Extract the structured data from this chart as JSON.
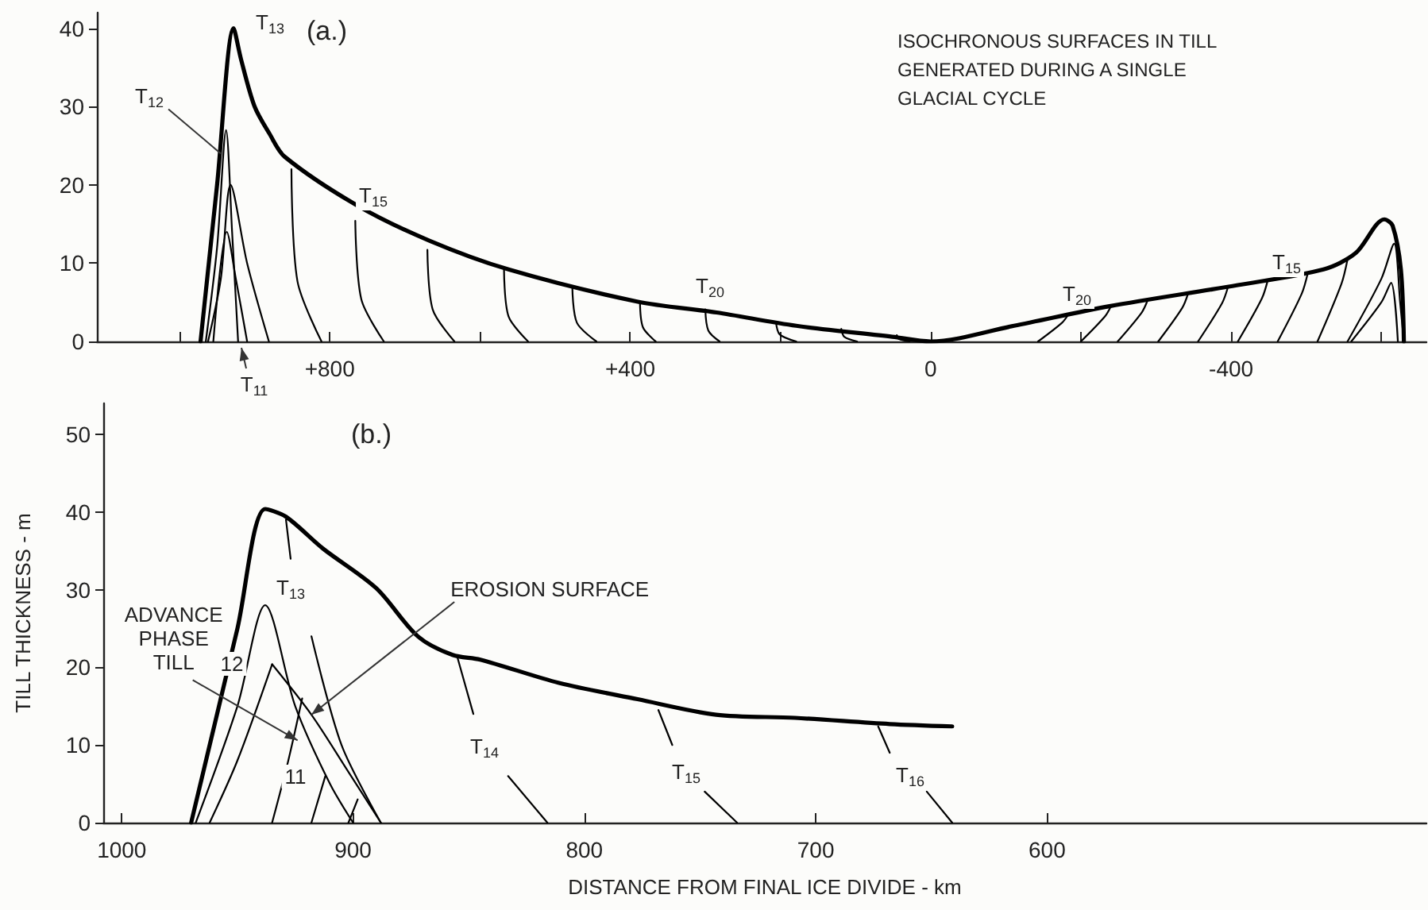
{
  "chart_data": [
    {
      "type": "line",
      "title": "(a.)",
      "subtitle": "ISOCHRONOUS SURFACES IN TILL GENERATED DURING A SINGLE GLACIAL CYCLE",
      "marker": "none",
      "xlim": [
        1110,
        -660
      ],
      "ylim": [
        0,
        42
      ],
      "xticks": [
        {
          "value": 1000,
          "label": null
        },
        {
          "value": 800,
          "label": "+800"
        },
        {
          "value": 600,
          "label": null
        },
        {
          "value": 400,
          "label": "+400"
        },
        {
          "value": 200,
          "label": null
        },
        0,
        {
          "value": -200,
          "label": null
        },
        {
          "value": -400,
          "label": "-400"
        },
        {
          "value": -600,
          "label": null
        }
      ],
      "yticks": [
        0,
        10,
        20,
        30,
        40
      ],
      "series": [
        {
          "color": "#000000",
          "x": [
            972,
            950,
            928,
            918,
            900,
            880,
            860,
            764,
            668,
            562,
            391,
            285,
            179,
            51,
            0,
            -111,
            -238,
            -409,
            -523,
            -566,
            -604,
            -615,
            -626,
            -630
          ],
          "values": [
            0,
            20,
            40,
            36,
            30,
            26.5,
            23.6,
            17.4,
            12.9,
            9.2,
            5.1,
            3.7,
            2,
            0.6,
            0,
            2,
            4.5,
            7.2,
            9.2,
            11.3,
            15.6,
            14.8,
            9.2,
            0
          ]
        },
        {
          "color": "#000000",
          "x": [
            965,
            950,
            938,
            930,
            922
          ],
          "values": [
            0,
            12,
            27,
            14,
            0
          ]
        },
        {
          "color": "#000000",
          "x": [
            962,
            945,
            932,
            910,
            881
          ],
          "values": [
            0,
            8,
            20,
            10,
            0
          ]
        },
        {
          "color": "#000000",
          "x": [
            955,
            937,
            925,
            910
          ],
          "values": [
            0,
            14,
            8,
            0
          ]
        },
        {
          "color": "#000000",
          "x": [
            851,
            843,
            811
          ],
          "values": [
            22,
            7.7,
            0
          ]
        },
        {
          "color": "#000000",
          "x": [
            766,
            758,
            728
          ],
          "values": [
            15.4,
            5.4,
            0
          ]
        },
        {
          "color": "#000000",
          "x": [
            670,
            663,
            634
          ],
          "values": [
            11.7,
            4.1,
            0
          ]
        },
        {
          "color": "#000000",
          "x": [
            568,
            562,
            536
          ],
          "values": [
            9.2,
            3.2,
            0
          ]
        },
        {
          "color": "#000000",
          "x": [
            477,
            471,
            445
          ],
          "values": [
            6.8,
            2.4,
            0
          ]
        },
        {
          "color": "#000000",
          "x": [
            387,
            383,
            366
          ],
          "values": [
            5.1,
            1.8,
            0
          ]
        },
        {
          "color": "#000000",
          "x": [
            300,
            296,
            281
          ],
          "values": [
            4.1,
            1.4,
            0
          ]
        },
        {
          "color": "#000000",
          "x": [
            206,
            201,
            179
          ],
          "values": [
            2.5,
            0.9,
            0
          ]
        },
        {
          "color": "#000000",
          "x": [
            119,
            115,
            98
          ],
          "values": [
            1.6,
            0.6,
            0
          ]
        },
        {
          "color": "#000000",
          "x": [
            45,
            42,
            28
          ],
          "values": [
            0.8,
            0.3,
            0
          ]
        },
        {
          "color": "#000000",
          "x": [
            -143,
            -175,
            -183
          ],
          "values": [
            0,
            2.4,
            3.4
          ]
        },
        {
          "color": "#000000",
          "x": [
            -200,
            -232,
            -240
          ],
          "values": [
            0,
            3.2,
            4.5
          ]
        },
        {
          "color": "#000000",
          "x": [
            -249,
            -281,
            -289
          ],
          "values": [
            0,
            3.7,
            5.3
          ]
        },
        {
          "color": "#000000",
          "x": [
            -303,
            -335,
            -343
          ],
          "values": [
            0,
            4.3,
            6.2
          ]
        },
        {
          "color": "#000000",
          "x": [
            -356,
            -388,
            -396
          ],
          "values": [
            0,
            4.9,
            7
          ]
        },
        {
          "color": "#000000",
          "x": [
            -409,
            -441,
            -449
          ],
          "values": [
            0,
            5.5,
            7.9
          ]
        },
        {
          "color": "#000000",
          "x": [
            -462,
            -494,
            -502
          ],
          "values": [
            0,
            6.1,
            8.7
          ]
        },
        {
          "color": "#000000",
          "x": [
            -515,
            -547,
            -555
          ],
          "values": [
            0,
            7.4,
            10.5
          ]
        },
        {
          "color": "#000000",
          "x": [
            -555,
            -600,
            -617,
            -625,
            -630
          ],
          "values": [
            0,
            8,
            12.5,
            5,
            0
          ]
        },
        {
          "color": "#000000",
          "x": [
            -560,
            -600,
            -613,
            -622
          ],
          "values": [
            0,
            5,
            7.5,
            0
          ]
        }
      ],
      "annotations": [
        "T$_{13}$",
        {
          "text": "T$_{12}$",
          "x": 945,
          "y": 24
        },
        "T$_{11}$",
        "T$_{15}$",
        "T$_{20}$",
        "T$_{20}$",
        "T$_{15}$"
      ]
    },
    {
      "type": "line",
      "title": "(b.)",
      "xlabel": "DISTANCE FROM FINAL ICE DIVIDE - km",
      "ylabel": "TILL THICKNESS - m",
      "marker": "none",
      "xlim": [
        1008,
        436
      ],
      "ylim": [
        0,
        54
      ],
      "xticks": [
        1000,
        900,
        800,
        700,
        600
      ],
      "yticks": [
        0,
        10,
        20,
        30,
        40,
        50
      ],
      "series": [
        {
          "color": "#000000",
          "x": [
            970,
            950,
            938,
            929,
            913,
            890,
            872,
            857,
            845,
            811,
            777,
            743,
            709,
            668,
            641
          ],
          "values": [
            0,
            25,
            40.4,
            39.4,
            35.3,
            30.2,
            24,
            21.6,
            21,
            18,
            15.9,
            13.9,
            13.5,
            12.7,
            12.4
          ]
        },
        {
          "color": "#000000",
          "x": [
            968,
            950,
            938,
            925,
            910,
            900
          ],
          "values": [
            0,
            15,
            28,
            15,
            5,
            0
          ]
        },
        {
          "color": "#000000",
          "x": [
            935,
            918,
            903,
            888
          ],
          "values": [
            20.4,
            13.9,
            7,
            0
          ]
        },
        {
          "color": "#000000",
          "x": [
            962,
            950,
            935
          ],
          "values": [
            0,
            8,
            20.4
          ]
        },
        {
          "color": "#000000",
          "x": [
            935,
            928,
            922
          ],
          "values": [
            0,
            8,
            16
          ]
        },
        {
          "color": "#000000",
          "x": [
            918,
            912
          ],
          "values": [
            0,
            6
          ]
        },
        {
          "color": "#000000",
          "x": [
            902,
            898
          ],
          "values": [
            0,
            3
          ]
        },
        {
          "color": "#000000",
          "x": [
            929,
            927,
            925,
            918,
            905,
            888
          ],
          "values": [
            39,
            34,
            null,
            24,
            10,
            0
          ]
        },
        {
          "color": "#000000",
          "x": [
            855,
            848,
            841,
            833,
            816
          ],
          "values": [
            21.4,
            14,
            null,
            6,
            0
          ]
        },
        {
          "color": "#000000",
          "x": [
            768,
            762,
            755,
            748,
            734
          ],
          "values": [
            14.5,
            10,
            null,
            4,
            0
          ]
        },
        {
          "color": "#000000",
          "x": [
            673,
            668,
            659,
            652,
            641
          ],
          "values": [
            12.4,
            9,
            null,
            4,
            0
          ]
        }
      ],
      "annotations": [
        "T$_{13}$",
        "T$_{14}$",
        "T$_{15}$",
        "T$_{16}$",
        "12",
        "11",
        {
          "text": "ADVANCE PHASE TILL",
          "x": 924,
          "y": 10.6
        },
        {
          "text": "EROSION SURFACE",
          "x": 918,
          "y": 13.9
        }
      ]
    }
  ]
}
